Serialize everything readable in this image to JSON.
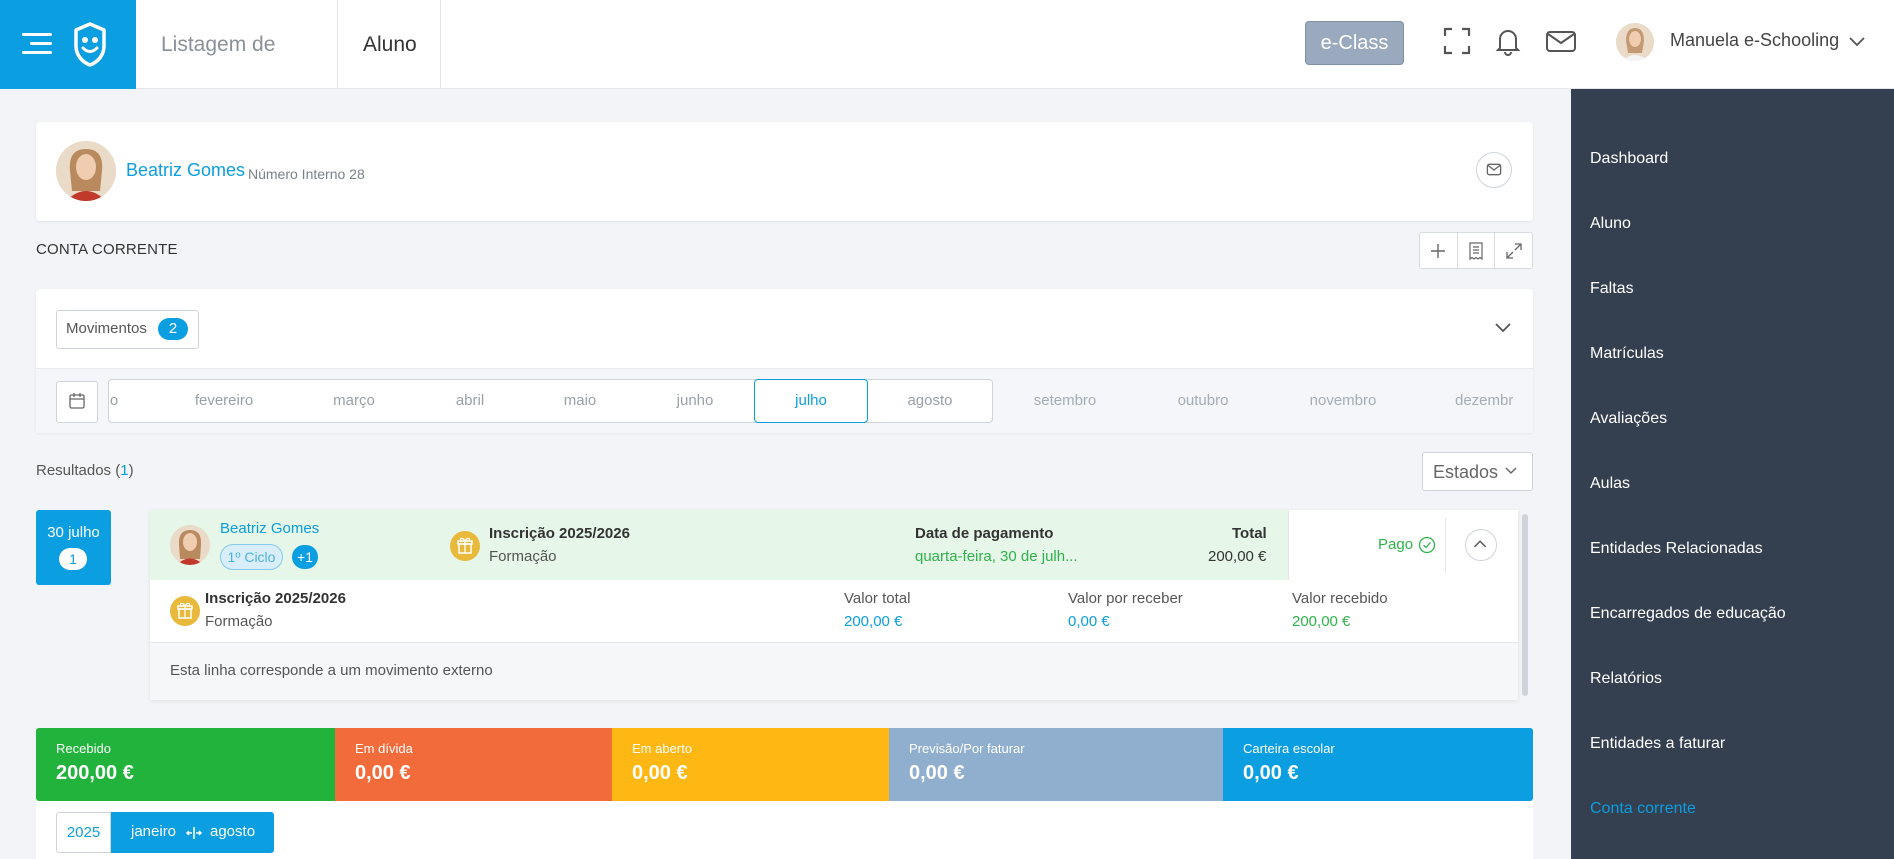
{
  "header": {
    "crumbs": [
      "Listagem de alunos",
      "Aluno"
    ],
    "eclass_label": "e-Class",
    "user_name": "Manuela e-Schooling"
  },
  "sidebar": {
    "items": [
      "Dashboard",
      "Aluno",
      "Faltas",
      "Matrículas",
      "Avaliações",
      "Aulas",
      "Entidades Relacionadas",
      "Encarregados de educação",
      "Relatórios",
      "Entidades a faturar",
      "Conta corrente"
    ],
    "active": "Conta corrente"
  },
  "profile": {
    "name": "Beatriz Gomes",
    "number": "Número Interno 28"
  },
  "conta": {
    "title": "CONTA CORRENTE",
    "movimentos_label": "Movimentos",
    "movimentos_count": "2",
    "months": [
      "o",
      "fevereiro",
      "março",
      "abril",
      "maio",
      "junho",
      "julho",
      "agosto",
      "setembro",
      "outubro",
      "novembro",
      "dezembr"
    ],
    "selected_month": "julho",
    "results_label": "Resultados (",
    "results_count": "1",
    "results_close": ")",
    "estados_label": "Estados"
  },
  "movement": {
    "date": "30 julho",
    "date_count": "1",
    "student": "Beatriz Gomes",
    "ciclo": "1º Ciclo",
    "plus": "+1",
    "title": "Inscrição 2025/2026",
    "subtitle": "Formação",
    "payment_label": "Data de pagamento",
    "payment_value": "quarta-feira, 30 de julh...",
    "total_label": "Total",
    "total_value": "200,00 €",
    "status": "Pago",
    "detail_title": "Inscrição 2025/2026",
    "detail_sub": "Formação",
    "valor_total_label": "Valor total",
    "valor_total": "200,00 €",
    "valor_receber_label": "Valor por receber",
    "valor_receber": "0,00 €",
    "valor_recebido_label": "Valor recebido",
    "valor_recebido": "200,00 €",
    "note": "Esta linha corresponde a um movimento externo"
  },
  "stats": [
    {
      "label": "Recebido",
      "value": "200,00 €",
      "color": "#21b33b"
    },
    {
      "label": "Em dívida",
      "value": "0,00 €",
      "color": "#f26b3a"
    },
    {
      "label": "Em aberto",
      "value": "0,00 €",
      "color": "#ffb714"
    },
    {
      "label": "Previsão/Por faturar",
      "value": "0,00 €",
      "color": "#90aecd"
    },
    {
      "label": "Carteira escolar",
      "value": "0,00 €",
      "color": "#0b9ee0"
    }
  ],
  "filter": {
    "year": "2025",
    "from": "janeiro",
    "to": "agosto"
  }
}
